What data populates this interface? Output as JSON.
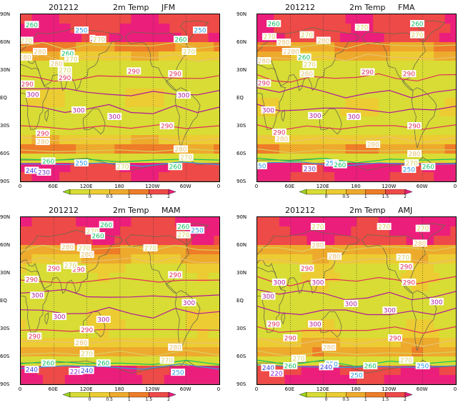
{
  "panels": [
    {
      "date": "201212",
      "variable": "2m Temp",
      "season": "JFM"
    },
    {
      "date": "201212",
      "variable": "2m Temp",
      "season": "FMA"
    },
    {
      "date": "201212",
      "variable": "2m Temp",
      "season": "MAM"
    },
    {
      "date": "201212",
      "variable": "2m Temp",
      "season": "AMJ"
    }
  ],
  "lat_ticks": [
    "90N",
    "60N",
    "30N",
    "EQ",
    "30S",
    "60S",
    "90S"
  ],
  "lon_ticks": [
    "0",
    "60E",
    "120E",
    "180",
    "120W",
    "60W",
    "0"
  ],
  "colorbar": {
    "labels": [
      "0",
      "0.5",
      "1",
      "1.5",
      "2"
    ],
    "colors": [
      "#9ed61a",
      "#d8dc34",
      "#eccc32",
      "#eeaa2c",
      "#ee7c28",
      "#ee4a48",
      "#ec1e7c"
    ]
  },
  "contour_colors": {
    "220": "#9a2ed8",
    "230": "#7032c8",
    "240": "#3a3ae0",
    "250": "#2a9ae8",
    "260": "#10c060",
    "270": "#d8d060",
    "280": "#e8c070",
    "290": "#e0305a",
    "300": "#b0189a"
  },
  "panel_labels": [
    [
      {
        "v": "260",
        "lon": 20,
        "lat": 79
      },
      {
        "v": "250",
        "lon": 110,
        "lat": 73
      },
      {
        "v": "250",
        "lon": 325,
        "lat": 73
      },
      {
        "v": "270",
        "lon": 10,
        "lat": 62
      },
      {
        "v": "2",
        "lon": 130,
        "lat": 64
      },
      {
        "v": "270",
        "lon": 142,
        "lat": 63
      },
      {
        "v": "260",
        "lon": 290,
        "lat": 63
      },
      {
        "v": "280",
        "lon": 35,
        "lat": 50
      },
      {
        "v": "260",
        "lon": 85,
        "lat": 48
      },
      {
        "v": "270",
        "lon": 92,
        "lat": 42
      },
      {
        "v": "270",
        "lon": 305,
        "lat": 50
      },
      {
        "v": "280",
        "lon": 8,
        "lat": 44
      },
      {
        "v": "280",
        "lon": 65,
        "lat": 37
      },
      {
        "v": "270",
        "lon": 80,
        "lat": 30
      },
      {
        "v": "290",
        "lon": 80,
        "lat": 22
      },
      {
        "v": "290",
        "lon": 205,
        "lat": 29
      },
      {
        "v": "290",
        "lon": 280,
        "lat": 26
      },
      {
        "v": "290",
        "lon": 12,
        "lat": 15
      },
      {
        "v": "300",
        "lon": 22,
        "lat": 4
      },
      {
        "v": "300",
        "lon": 105,
        "lat": -13
      },
      {
        "v": "300",
        "lon": 170,
        "lat": -20
      },
      {
        "v": "300",
        "lon": 295,
        "lat": 3
      },
      {
        "v": "290",
        "lon": 265,
        "lat": -30
      },
      {
        "v": "290",
        "lon": 40,
        "lat": -38
      },
      {
        "v": "280",
        "lon": 40,
        "lat": -47
      },
      {
        "v": "280",
        "lon": 290,
        "lat": -55
      },
      {
        "v": "270",
        "lon": 300,
        "lat": -64
      },
      {
        "v": "260",
        "lon": 50,
        "lat": -68
      },
      {
        "v": "250",
        "lon": 110,
        "lat": -70
      },
      {
        "v": "270",
        "lon": 185,
        "lat": -74
      },
      {
        "v": "260",
        "lon": 280,
        "lat": -74
      },
      {
        "v": "240",
        "lon": 20,
        "lat": -78
      },
      {
        "v": "230",
        "lon": 42,
        "lat": -80
      }
    ],
    [
      {
        "v": "260",
        "lon": 30,
        "lat": 80
      },
      {
        "v": "260",
        "lon": 290,
        "lat": 80
      },
      {
        "v": "270",
        "lon": 190,
        "lat": 76
      },
      {
        "v": "270",
        "lon": 22,
        "lat": 66
      },
      {
        "v": "270",
        "lon": 90,
        "lat": 68
      },
      {
        "v": "270",
        "lon": 290,
        "lat": 68
      },
      {
        "v": "280",
        "lon": 120,
        "lat": 62
      },
      {
        "v": "280",
        "lon": 48,
        "lat": 60
      },
      {
        "v": "280",
        "lon": 58,
        "lat": 50
      },
      {
        "v": "280",
        "lon": 65,
        "lat": 50
      },
      {
        "v": "260",
        "lon": 85,
        "lat": 44
      },
      {
        "v": "270",
        "lon": 95,
        "lat": 36
      },
      {
        "v": "280",
        "lon": 12,
        "lat": 40
      },
      {
        "v": "280",
        "lon": 90,
        "lat": 26
      },
      {
        "v": "290",
        "lon": 200,
        "lat": 28
      },
      {
        "v": "290",
        "lon": 275,
        "lat": 26
      },
      {
        "v": "290",
        "lon": 12,
        "lat": 16
      },
      {
        "v": "300",
        "lon": 20,
        "lat": -13
      },
      {
        "v": "300",
        "lon": 105,
        "lat": -19
      },
      {
        "v": "300",
        "lon": 175,
        "lat": -20
      },
      {
        "v": "290",
        "lon": 285,
        "lat": -30
      },
      {
        "v": "290",
        "lon": 40,
        "lat": -37
      },
      {
        "v": "280",
        "lon": 45,
        "lat": -44
      },
      {
        "v": "280",
        "lon": 210,
        "lat": -50
      },
      {
        "v": "280",
        "lon": 285,
        "lat": -60
      },
      {
        "v": "270",
        "lon": 280,
        "lat": -70
      },
      {
        "v": "250",
        "lon": 5,
        "lat": -73
      },
      {
        "v": "250",
        "lon": 135,
        "lat": -70
      },
      {
        "v": "260",
        "lon": 150,
        "lat": -72
      },
      {
        "v": "260",
        "lon": 310,
        "lat": -74
      },
      {
        "v": "230",
        "lon": 95,
        "lat": -76
      },
      {
        "v": "250",
        "lon": 275,
        "lat": -77
      }
    ],
    [
      {
        "v": "260",
        "lon": 155,
        "lat": 82
      },
      {
        "v": "260",
        "lon": 295,
        "lat": 80
      },
      {
        "v": "270",
        "lon": 130,
        "lat": 75
      },
      {
        "v": "250",
        "lon": 320,
        "lat": 76
      },
      {
        "v": "260",
        "lon": 140,
        "lat": 70
      },
      {
        "v": "270",
        "lon": 295,
        "lat": 71
      },
      {
        "v": "280",
        "lon": 85,
        "lat": 58
      },
      {
        "v": "270",
        "lon": 115,
        "lat": 57
      },
      {
        "v": "270",
        "lon": 235,
        "lat": 57
      },
      {
        "v": "280",
        "lon": 120,
        "lat": 50
      },
      {
        "v": "290",
        "lon": 60,
        "lat": 35
      },
      {
        "v": "290",
        "lon": 105,
        "lat": 34
      },
      {
        "v": "270",
        "lon": 90,
        "lat": 38
      },
      {
        "v": "290",
        "lon": 280,
        "lat": 28
      },
      {
        "v": "290",
        "lon": 20,
        "lat": 23
      },
      {
        "v": "300",
        "lon": 30,
        "lat": 6
      },
      {
        "v": "300",
        "lon": 305,
        "lat": -2
      },
      {
        "v": "300",
        "lon": 150,
        "lat": -20
      },
      {
        "v": "300",
        "lon": 70,
        "lat": -17
      },
      {
        "v": "290",
        "lon": 120,
        "lat": -31
      },
      {
        "v": "290",
        "lon": 25,
        "lat": -38
      },
      {
        "v": "280",
        "lon": 110,
        "lat": -45
      },
      {
        "v": "280",
        "lon": 280,
        "lat": -50
      },
      {
        "v": "270",
        "lon": 120,
        "lat": -57
      },
      {
        "v": "270",
        "lon": 265,
        "lat": -64
      },
      {
        "v": "260",
        "lon": 50,
        "lat": -67
      },
      {
        "v": "260",
        "lon": 150,
        "lat": -67
      },
      {
        "v": "240",
        "lon": 20,
        "lat": -74
      },
      {
        "v": "220",
        "lon": 100,
        "lat": -76
      },
      {
        "v": "240",
        "lon": 120,
        "lat": -75
      },
      {
        "v": "250",
        "lon": 285,
        "lat": -77
      }
    ],
    [
      {
        "v": "270",
        "lon": 110,
        "lat": 80
      },
      {
        "v": "270",
        "lon": 230,
        "lat": 80
      },
      {
        "v": "270",
        "lon": 300,
        "lat": 78
      },
      {
        "v": "280",
        "lon": 110,
        "lat": 60
      },
      {
        "v": "280",
        "lon": 295,
        "lat": 62
      },
      {
        "v": "280",
        "lon": 140,
        "lat": 48
      },
      {
        "v": "270",
        "lon": 265,
        "lat": 47
      },
      {
        "v": "290",
        "lon": 90,
        "lat": 35
      },
      {
        "v": "290",
        "lon": 270,
        "lat": 37
      },
      {
        "v": "290",
        "lon": 275,
        "lat": 20
      },
      {
        "v": "300",
        "lon": 40,
        "lat": 20
      },
      {
        "v": "300",
        "lon": 110,
        "lat": 20
      },
      {
        "v": "300",
        "lon": 20,
        "lat": 5
      },
      {
        "v": "300",
        "lon": 170,
        "lat": -3
      },
      {
        "v": "300",
        "lon": 325,
        "lat": -1
      },
      {
        "v": "300",
        "lon": 240,
        "lat": -10
      },
      {
        "v": "300",
        "lon": 105,
        "lat": -25
      },
      {
        "v": "290",
        "lon": 30,
        "lat": -25
      },
      {
        "v": "290",
        "lon": 60,
        "lat": -40
      },
      {
        "v": "290",
        "lon": 250,
        "lat": -40
      },
      {
        "v": "280",
        "lon": 130,
        "lat": -50
      },
      {
        "v": "270",
        "lon": 75,
        "lat": -62
      },
      {
        "v": "270",
        "lon": 270,
        "lat": -64
      },
      {
        "v": "250",
        "lon": 135,
        "lat": -68
      },
      {
        "v": "260",
        "lon": 60,
        "lat": -70
      },
      {
        "v": "240",
        "lon": 125,
        "lat": -71
      },
      {
        "v": "260",
        "lon": 205,
        "lat": -70
      },
      {
        "v": "250",
        "lon": 300,
        "lat": -70
      },
      {
        "v": "240",
        "lon": 20,
        "lat": -72
      },
      {
        "v": "220",
        "lon": 35,
        "lat": -78
      },
      {
        "v": "250",
        "lon": 180,
        "lat": -80
      }
    ]
  ]
}
